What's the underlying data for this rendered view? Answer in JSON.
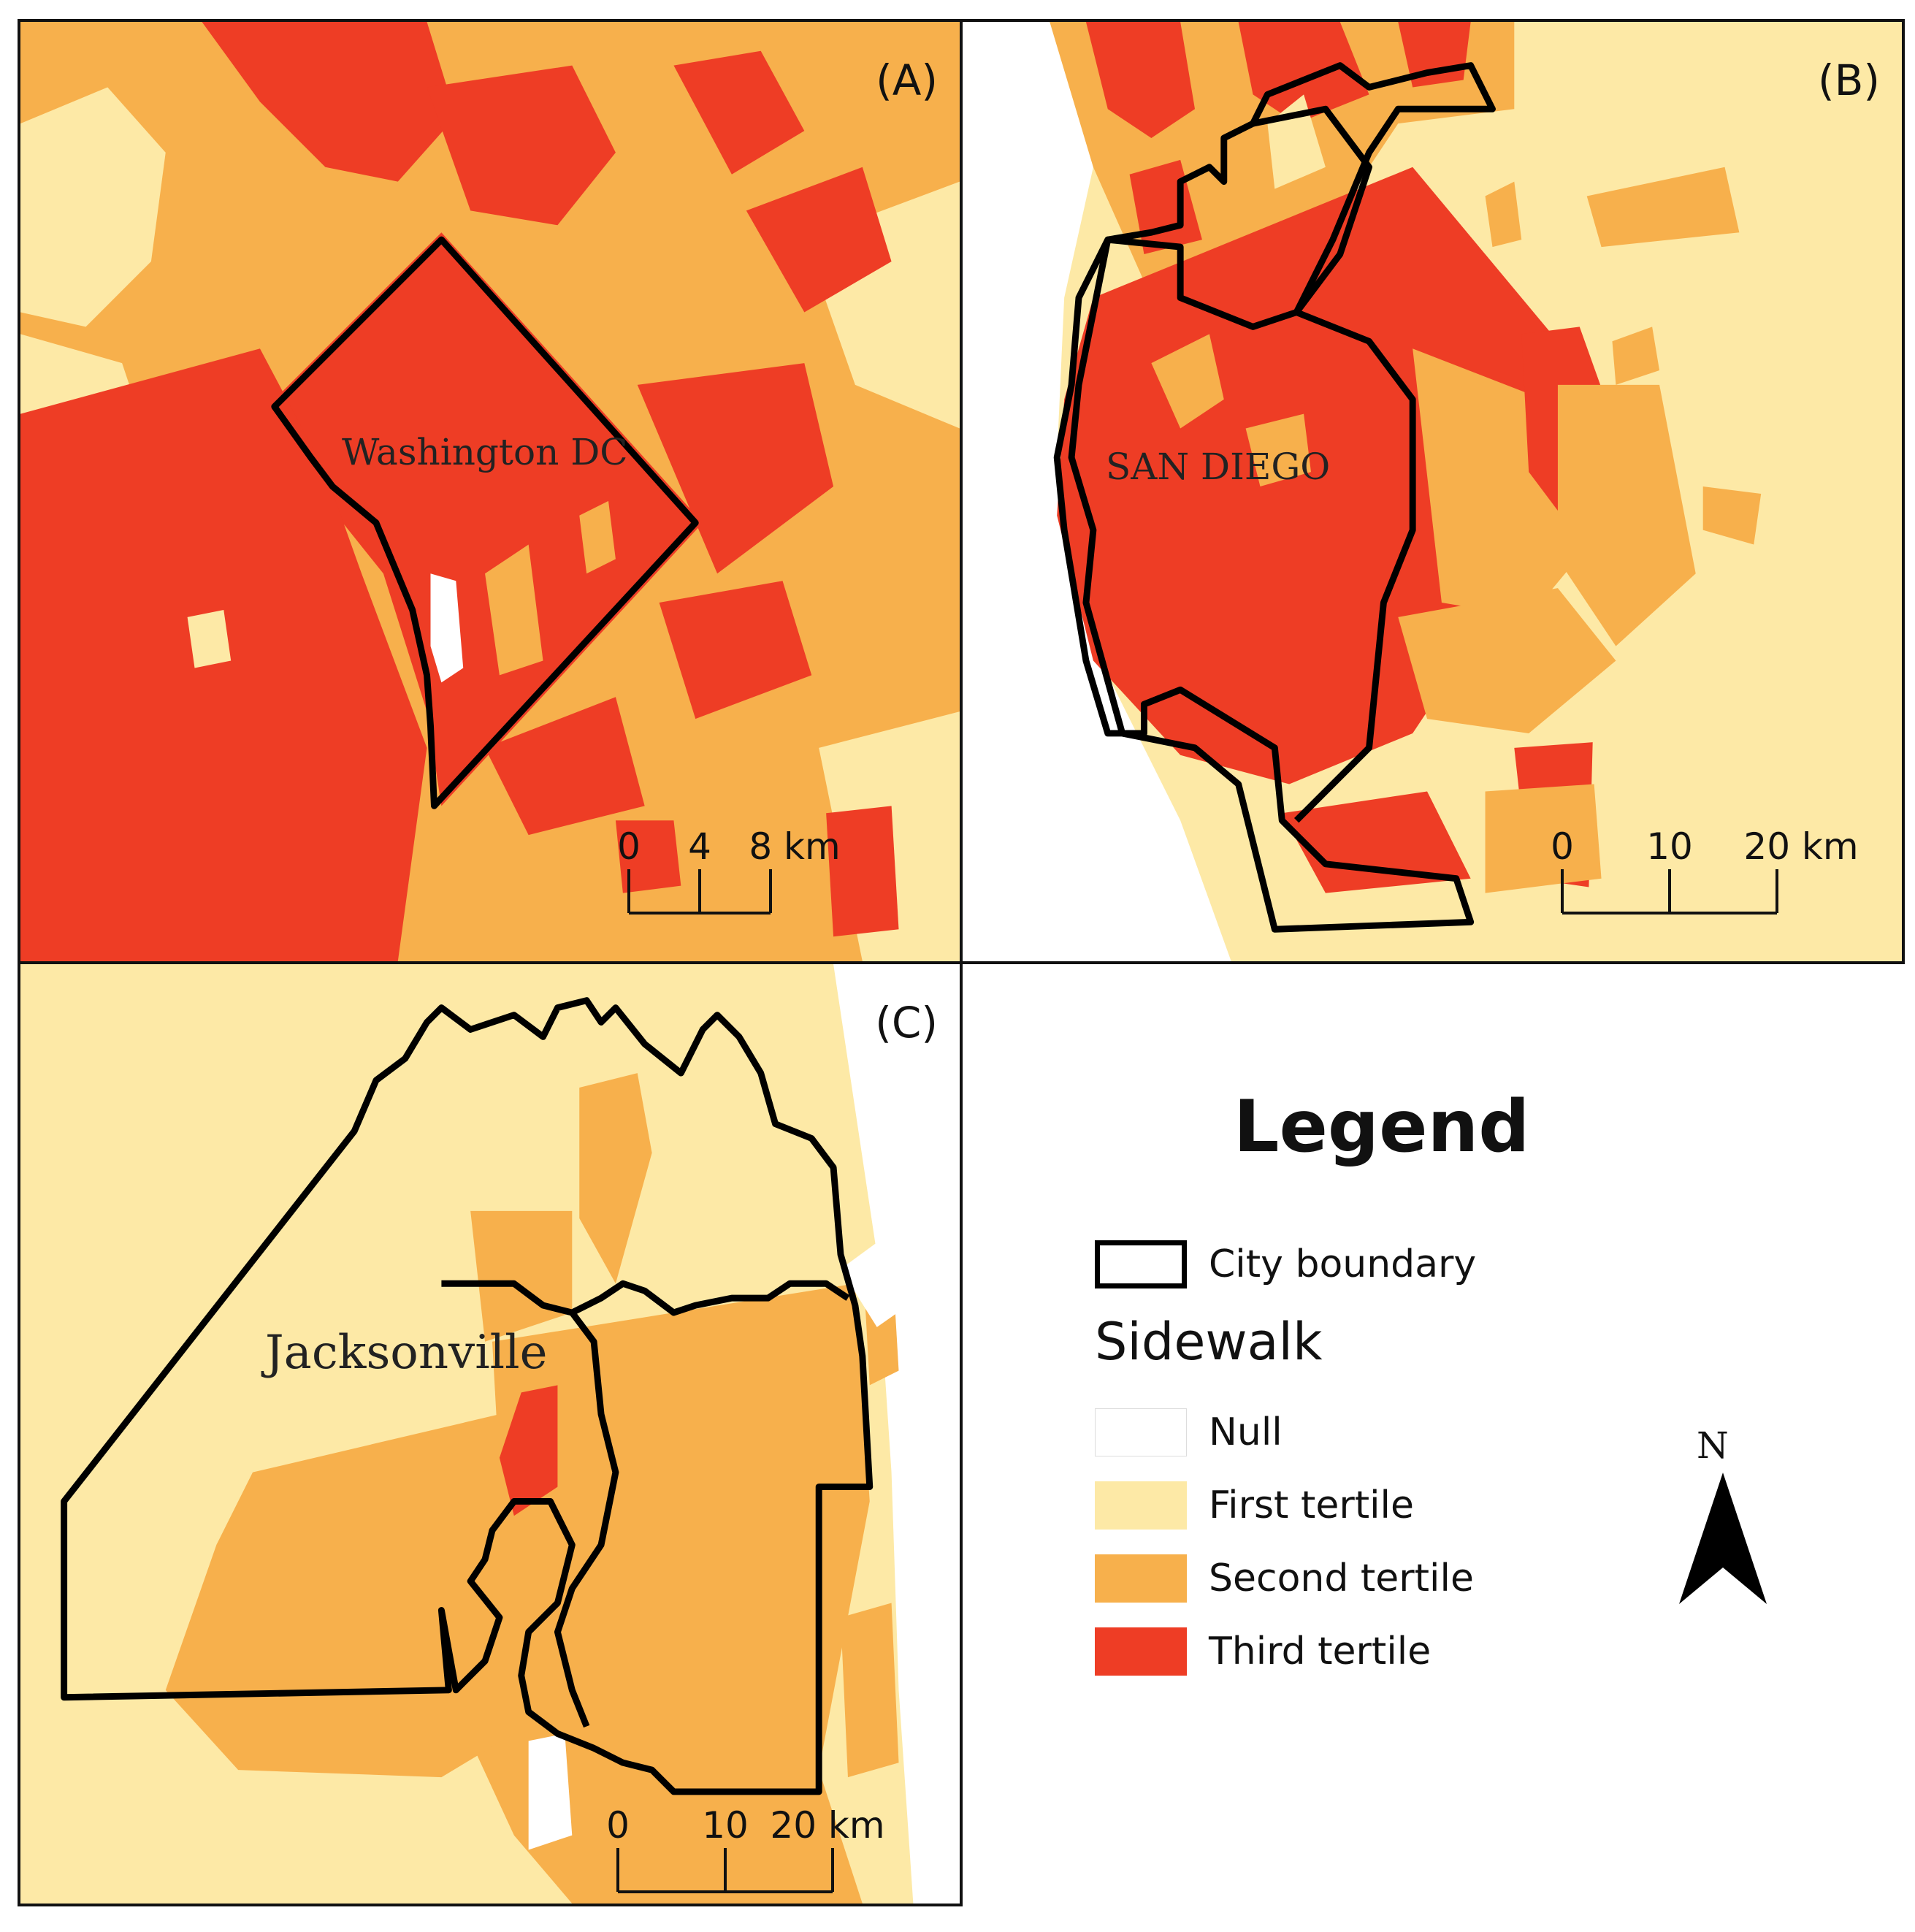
{
  "panels": [
    {
      "id": "A",
      "label": "(A)",
      "city": "Washington DC",
      "scale_ticks": [
        "0",
        "4",
        "8 km"
      ]
    },
    {
      "id": "B",
      "label": "(B)",
      "city": "SAN DIEGO",
      "scale_ticks": [
        "0",
        "10",
        "20 km"
      ]
    },
    {
      "id": "C",
      "label": "(C)",
      "city": "Jacksonville",
      "scale_ticks": [
        "0",
        "10",
        "20 km"
      ]
    }
  ],
  "legend": {
    "title": "Legend",
    "boundary_label": "City boundary",
    "subtitle": "Sidewalk",
    "classes": [
      {
        "label": "Null",
        "color": "#ffffff"
      },
      {
        "label": "First tertile",
        "color": "#fde9a6"
      },
      {
        "label": "Second tertile",
        "color": "#f7b04c"
      },
      {
        "label": "Third tertile",
        "color": "#ee3d25"
      }
    ]
  },
  "north_arrow": {
    "letter": "N"
  },
  "colors": {
    "null": "#ffffff",
    "first": "#fde9a6",
    "second": "#f7b04c",
    "third": "#ee3d25",
    "boundary": "#000000"
  }
}
